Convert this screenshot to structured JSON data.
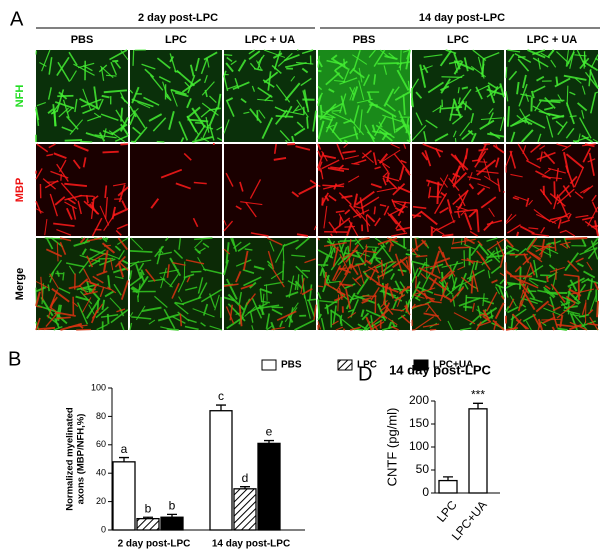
{
  "panel_a": {
    "label": "A",
    "groups": [
      "2 day post-LPC",
      "14 day post-LPC"
    ],
    "columns": [
      "PBS",
      "LPC",
      "LPC + UA",
      "PBS",
      "LPC",
      "LPC + UA"
    ],
    "rows": [
      "NFH",
      "MBP",
      "Merge"
    ]
  },
  "chart_data": [
    {
      "type": "bar",
      "panel": "B",
      "ylabel": [
        "Normalized myelinated",
        "axons (MBP/NFH,%)"
      ],
      "categories": [
        "2 day post-LPC",
        "14 day post-LPC"
      ],
      "series": [
        {
          "name": "PBS",
          "color": "#ffffff",
          "hatch": false,
          "values": [
            48,
            84
          ],
          "errors": [
            3,
            4
          ],
          "letters": [
            "a",
            "c"
          ]
        },
        {
          "name": "LPC",
          "color": "#ffffff",
          "hatch": true,
          "values": [
            8,
            29
          ],
          "errors": [
            1,
            1.5
          ],
          "letters": [
            "b",
            "d"
          ]
        },
        {
          "name": "LPC+UA",
          "color": "#000000",
          "hatch": false,
          "values": [
            9,
            61
          ],
          "errors": [
            2,
            2
          ],
          "letters": [
            "b",
            "e"
          ]
        }
      ],
      "ylim": [
        0,
        100
      ],
      "yticks": [
        0,
        20,
        40,
        60,
        80,
        100
      ]
    },
    {
      "type": "bar",
      "panel": "D",
      "title": "14 day post-LPC",
      "ylabel": "CNTF (pg/ml)",
      "categories": [
        "LPC",
        "LPC+UA"
      ],
      "series": [
        {
          "name": "CNTF",
          "color": "#ffffff",
          "hatch": false,
          "values": [
            27,
            183
          ],
          "errors": [
            8,
            12
          ],
          "letters": [
            null,
            "***"
          ]
        }
      ],
      "ylim": [
        0,
        200
      ],
      "yticks": [
        0,
        50,
        100,
        150,
        200
      ]
    }
  ]
}
